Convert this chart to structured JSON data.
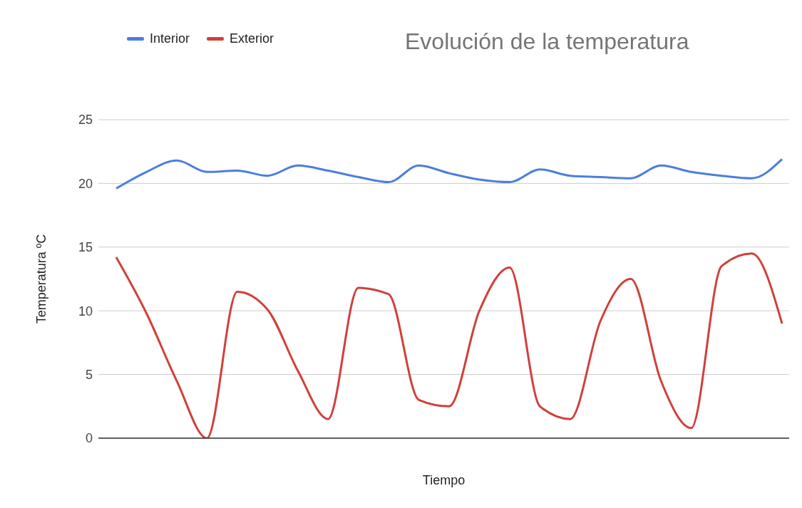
{
  "chart_data": {
    "type": "line",
    "title": "Evolución de la temperatura",
    "xlabel": "Tiempo",
    "ylabel": "Temperatura ºC",
    "categories": [
      null,
      null,
      null,
      null,
      null,
      null,
      null,
      null,
      null,
      null,
      null,
      null,
      null,
      null,
      null,
      null,
      null,
      null,
      null,
      null,
      null,
      null,
      null
    ],
    "series": [
      {
        "name": "Interior",
        "color": "#4a7fdc",
        "values": [
          19.6,
          20.9,
          21.8,
          20.9,
          21.0,
          20.6,
          21.4,
          21.0,
          20.5,
          20.1,
          21.4,
          20.8,
          20.3,
          20.1,
          21.1,
          20.6,
          20.5,
          20.4,
          21.4,
          20.9,
          20.6,
          20.4,
          21.9
        ]
      },
      {
        "name": "Exterior",
        "color": "#d0403a",
        "values": [
          14.2,
          9.8,
          4.5,
          0,
          11.5,
          10.1,
          5.3,
          1.5,
          11.8,
          11.3,
          3,
          2.5,
          10,
          13.4,
          2.5,
          1.5,
          9.2,
          12.5,
          4.5,
          0.8,
          13.5,
          14.5,
          9
        ]
      }
    ],
    "ylim": [
      0,
      25
    ],
    "yticks": [
      0,
      5,
      10,
      15,
      20,
      25
    ],
    "grid": "y",
    "legend": "top left",
    "tick_labels": "y",
    "marker": "none",
    "line_style": "solid"
  }
}
